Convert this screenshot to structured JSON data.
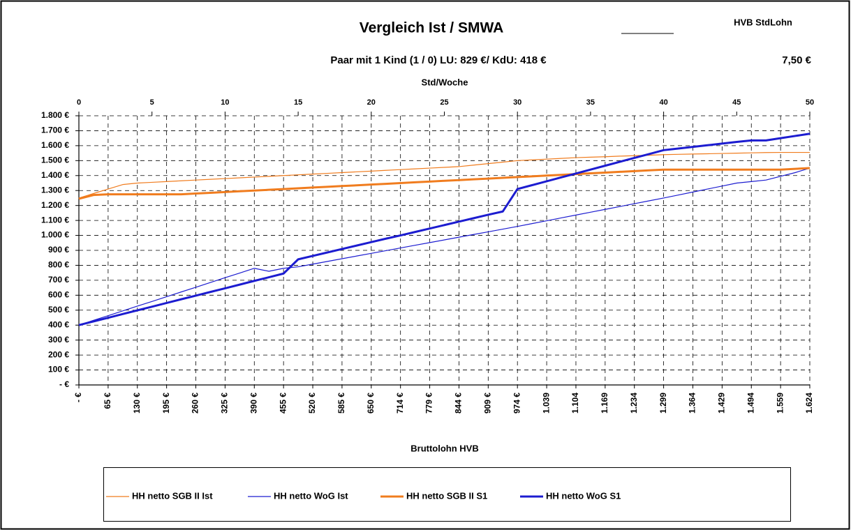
{
  "chart_data": {
    "type": "line",
    "title": "Vergleich Ist / SMWA",
    "corner_label": "HVB StdLohn",
    "subtitle": "Paar mit 1 Kind (1 / 0) LU: 829 €/ KdU: 418 €",
    "wage_label": "7,50 €",
    "xlabel": "Std/Woche",
    "x2label": "Bruttolohn HVB",
    "x": [
      0,
      1,
      2,
      3,
      4,
      5,
      6,
      7,
      8,
      9,
      10,
      11,
      12,
      13,
      14,
      15,
      16,
      17,
      18,
      19,
      20,
      21,
      22,
      23,
      24,
      25,
      26,
      27,
      28,
      29,
      30,
      31,
      32,
      33,
      34,
      35,
      36,
      37,
      38,
      39,
      40,
      41,
      42,
      43,
      44,
      45,
      46,
      47,
      48,
      49,
      50
    ],
    "xlim": [
      0,
      50
    ],
    "xticks": [
      0,
      5,
      10,
      15,
      20,
      25,
      30,
      35,
      40,
      45,
      50
    ],
    "x2ticks": [
      {
        "value": 0,
        "label": "- €"
      },
      {
        "value": 2,
        "label": "65 €"
      },
      {
        "value": 4,
        "label": "130 €"
      },
      {
        "value": 6,
        "label": "195 €"
      },
      {
        "value": 8,
        "label": "260 €"
      },
      {
        "value": 10,
        "label": "325 €"
      },
      {
        "value": 12,
        "label": "390 €"
      },
      {
        "value": 14,
        "label": "455 €"
      },
      {
        "value": 16,
        "label": "520 €"
      },
      {
        "value": 18,
        "label": "585 €"
      },
      {
        "value": 20,
        "label": "650 €"
      },
      {
        "value": 22,
        "label": "714 €"
      },
      {
        "value": 24,
        "label": "779 €"
      },
      {
        "value": 26,
        "label": "844 €"
      },
      {
        "value": 28,
        "label": "909 €"
      },
      {
        "value": 30,
        "label": "974 €"
      },
      {
        "value": 32,
        "label": "1.039"
      },
      {
        "value": 34,
        "label": "1.104"
      },
      {
        "value": 36,
        "label": "1.169"
      },
      {
        "value": 38,
        "label": "1.234"
      },
      {
        "value": 40,
        "label": "1.299"
      },
      {
        "value": 42,
        "label": "1.364"
      },
      {
        "value": 44,
        "label": "1.429"
      },
      {
        "value": 46,
        "label": "1.494"
      },
      {
        "value": 48,
        "label": "1.559"
      },
      {
        "value": 50,
        "label": "1.624"
      }
    ],
    "ylim": [
      0,
      1800
    ],
    "yticks": [
      {
        "value": 0,
        "label": "- €"
      },
      {
        "value": 100,
        "label": "100 €"
      },
      {
        "value": 200,
        "label": "200 €"
      },
      {
        "value": 300,
        "label": "300 €"
      },
      {
        "value": 400,
        "label": "400 €"
      },
      {
        "value": 500,
        "label": "500 €"
      },
      {
        "value": 600,
        "label": "600 €"
      },
      {
        "value": 700,
        "label": "700 €"
      },
      {
        "value": 800,
        "label": "800 €"
      },
      {
        "value": 900,
        "label": "900 €"
      },
      {
        "value": 1000,
        "label": "1.000 €"
      },
      {
        "value": 1100,
        "label": "1.100 €"
      },
      {
        "value": 1200,
        "label": "1.200 €"
      },
      {
        "value": 1300,
        "label": "1.300 €"
      },
      {
        "value": 1400,
        "label": "1.400 €"
      },
      {
        "value": 1500,
        "label": "1.500 €"
      },
      {
        "value": 1600,
        "label": "1.600 €"
      },
      {
        "value": 1700,
        "label": "1.700 €"
      },
      {
        "value": 1800,
        "label": "1.800 €"
      }
    ],
    "grid": true,
    "legend": "bottom",
    "series": [
      {
        "name": "HH netto SGB II Ist",
        "color": "#f07c1e",
        "linewidth": 1.2,
        "values": [
          1250,
          1280,
          1310,
          1340,
          1350,
          1355,
          1360,
          1365,
          1370,
          1375,
          1380,
          1385,
          1390,
          1395,
          1400,
          1405,
          1410,
          1415,
          1420,
          1425,
          1430,
          1435,
          1440,
          1445,
          1450,
          1455,
          1460,
          1470,
          1480,
          1490,
          1500,
          1505,
          1510,
          1515,
          1520,
          1523,
          1526,
          1530,
          1533,
          1536,
          1540,
          1542,
          1544,
          1546,
          1548,
          1550,
          1552,
          1554,
          1555,
          1555,
          1555
        ]
      },
      {
        "name": "HH netto WoG Ist",
        "color": "#1c1cd0",
        "linewidth": 1.2,
        "values": [
          400,
          432,
          463,
          495,
          527,
          558,
          590,
          622,
          653,
          685,
          717,
          748,
          780,
          760,
          780,
          790,
          808,
          826,
          844,
          862,
          880,
          898,
          916,
          934,
          952,
          970,
          988,
          1006,
          1024,
          1042,
          1060,
          1079,
          1098,
          1117,
          1136,
          1155,
          1174,
          1193,
          1212,
          1231,
          1250,
          1270,
          1290,
          1310,
          1330,
          1350,
          1360,
          1370,
          1395,
          1420,
          1450
        ]
      },
      {
        "name": "HH netto SGB II S1",
        "color": "#f07c1e",
        "linewidth": 3,
        "values": [
          1245,
          1270,
          1275,
          1275,
          1275,
          1275,
          1275,
          1275,
          1280,
          1285,
          1290,
          1295,
          1300,
          1305,
          1310,
          1315,
          1320,
          1325,
          1330,
          1335,
          1340,
          1345,
          1350,
          1355,
          1360,
          1365,
          1370,
          1375,
          1380,
          1385,
          1390,
          1395,
          1400,
          1405,
          1410,
          1415,
          1420,
          1425,
          1430,
          1435,
          1440,
          1440,
          1440,
          1440,
          1440,
          1440,
          1440,
          1440,
          1440,
          1445,
          1450
        ]
      },
      {
        "name": "HH netto WoG S1",
        "color": "#1c1cd0",
        "linewidth": 3,
        "values": [
          400,
          425,
          449,
          474,
          499,
          523,
          548,
          573,
          597,
          622,
          646,
          671,
          696,
          720,
          745,
          840,
          863,
          886,
          909,
          932,
          955,
          978,
          1000,
          1023,
          1046,
          1069,
          1092,
          1115,
          1138,
          1160,
          1310,
          1336,
          1362,
          1388,
          1414,
          1440,
          1466,
          1492,
          1518,
          1544,
          1570,
          1581,
          1592,
          1603,
          1614,
          1625,
          1635,
          1635,
          1650,
          1665,
          1680
        ]
      }
    ]
  }
}
